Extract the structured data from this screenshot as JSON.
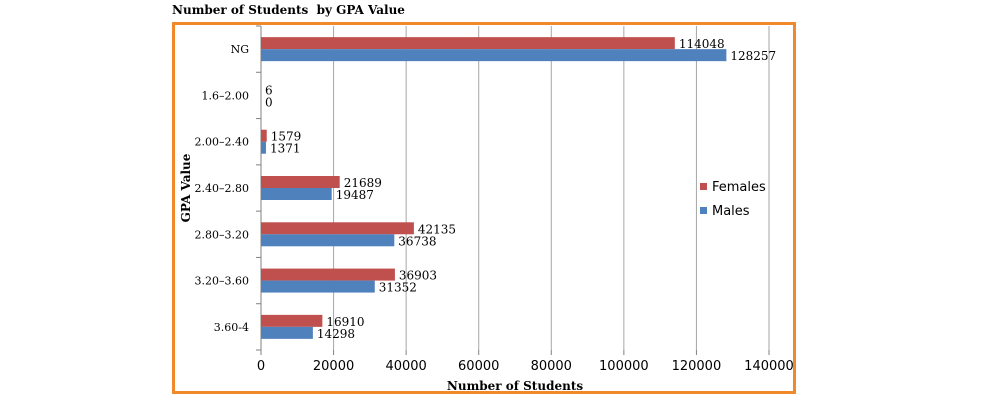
{
  "chart_data": {
    "type": "bar",
    "orientation": "horizontal",
    "title": "Number of Students  by GPA Value",
    "xlabel": "Number of Students",
    "ylabel": "GPA Value",
    "categories": [
      "NG",
      "1.6–2.00",
      "2.00–2.40",
      "2.40–2.80",
      "2.80–3.20",
      "3.20–3.60",
      "3.60-4"
    ],
    "series": [
      {
        "name": "Females",
        "color": "#c0504d",
        "values": [
          114048,
          6,
          1579,
          21689,
          42135,
          36903,
          16910
        ]
      },
      {
        "name": "Males",
        "color": "#4f81bd",
        "values": [
          128257,
          0,
          1371,
          19487,
          36738,
          31352,
          14298
        ]
      }
    ],
    "xlim": [
      0,
      140000
    ],
    "xticks": [
      0,
      20000,
      40000,
      60000,
      80000,
      100000,
      120000,
      140000
    ],
    "grid": true,
    "legend_position": "right",
    "frame_color": "#f0892a"
  }
}
